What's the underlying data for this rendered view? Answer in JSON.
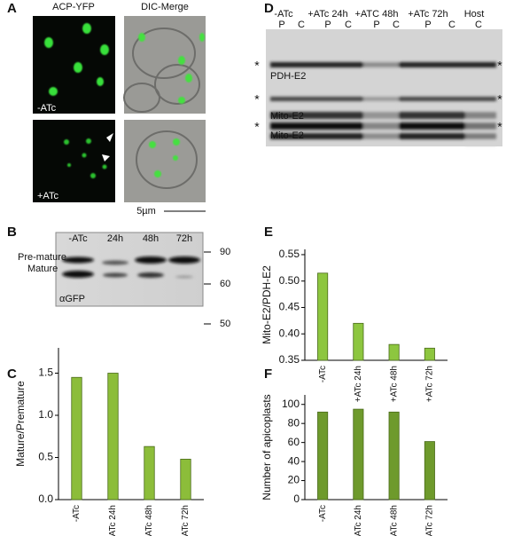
{
  "panel_labels": [
    "A",
    "B",
    "C",
    "D",
    "E",
    "F"
  ],
  "panel_a": {
    "col_titles": [
      "ACP-YFP",
      "DIC-Merge"
    ],
    "row_labels": [
      "-ATc",
      "+ATc"
    ],
    "scale_bar": "5µm"
  },
  "panel_b": {
    "lanes": [
      "-ATc",
      "24h",
      "48h",
      "72h"
    ],
    "bands": [
      "Pre-mature",
      "Mature"
    ],
    "markers": [
      90,
      60,
      50
    ],
    "antibody": "αGFP"
  },
  "panel_d": {
    "groups": [
      "-ATc",
      "+ATc 24h",
      "+ATC 48h",
      "+ATc 72h",
      "Host"
    ],
    "lanes": [
      "P",
      "C",
      "P",
      "C",
      "P",
      "C",
      "P",
      "C",
      "C"
    ],
    "bands": [
      "PDH-E2",
      "Mito-E2",
      "Mito-E2"
    ],
    "left_marks": [
      "*",
      "*",
      "*"
    ],
    "right_marks": [
      "*",
      "*",
      "*"
    ]
  },
  "chart_data": [
    {
      "type": "bar",
      "ylabel": "Mature/Premature",
      "categories": [
        "-ATc",
        "+ATc 24h",
        "+ATc 48h",
        "+ATc 72h"
      ],
      "values": [
        1.45,
        1.5,
        0.63,
        0.48
      ],
      "color": "#8cbd3a",
      "ylim": [
        0,
        1.8
      ],
      "yticks": [
        {
          "value": 0,
          "label": "0.0"
        },
        0.5,
        {
          "value": 1,
          "label": "1.0"
        },
        1.5
      ]
    },
    {
      "type": "bar",
      "ylabel": "Mito-E2/PDH-E2",
      "categories": [
        "-ATc",
        "+ATc 24h",
        "+ATc 48h",
        "+ATc 72h"
      ],
      "values": [
        0.515,
        0.42,
        0.38,
        0.373
      ],
      "color": "#8dc63f",
      "ylim": [
        0.35,
        0.56
      ],
      "yticks": [
        0.35,
        {
          "value": 0.4,
          "label": "0.40"
        },
        0.45,
        {
          "value": 0.5,
          "label": "0.50"
        },
        0.55
      ]
    },
    {
      "type": "bar",
      "ylabel": "Number of apicoplasts",
      "categories": [
        "-ATc",
        "+ATc 24h",
        "+ATc 48h",
        "+ATc 72h"
      ],
      "values": [
        92,
        95,
        92,
        61
      ],
      "color": "#6e9a2c",
      "ylim": [
        0,
        110
      ],
      "yticks": [
        0,
        20,
        40,
        60,
        80,
        100
      ]
    }
  ]
}
